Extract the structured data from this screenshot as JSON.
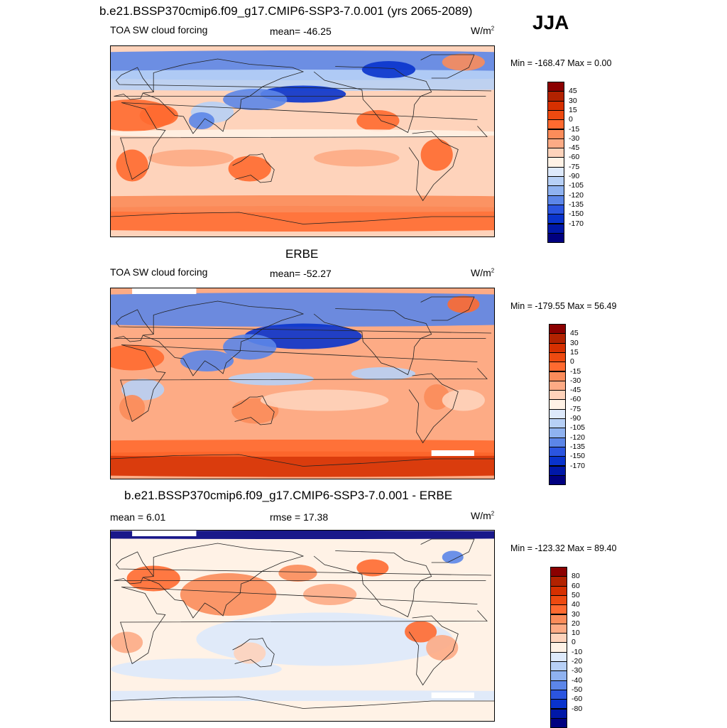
{
  "header": {
    "main_title": "b.e21.BSSP370cmip6.f09_g17.CMIP6-SSP3-7.0.001 (yrs 2065-2089)",
    "season": "JJA"
  },
  "panels": [
    {
      "id": "model",
      "title": "",
      "left_label": "TOA SW cloud forcing",
      "center_label": "mean= -46.25",
      "units": "W/m",
      "units_sup": "2",
      "minmax": "Min = -168.47 Max =   0.00",
      "colorbar": {
        "colors": [
          "#8b0000",
          "#b22200",
          "#d63000",
          "#ee4a10",
          "#ff6a30",
          "#fb8c5a",
          "#fdab85",
          "#fed3bb",
          "#fff2e6",
          "#dde9fb",
          "#b7d0f6",
          "#8fb2f0",
          "#5c86e8",
          "#2b55e0",
          "#0933cc",
          "#0018a8",
          "#000080"
        ],
        "labels": [
          "45",
          "30",
          "15",
          "0",
          "-15",
          "-30",
          "-45",
          "-60",
          "-75",
          "-90",
          "-105",
          "-120",
          "-135",
          "-150",
          "-170"
        ]
      }
    },
    {
      "id": "obs",
      "title": "ERBE",
      "left_label": "TOA SW cloud forcing",
      "center_label": "mean= -52.27",
      "units": "W/m",
      "units_sup": "2",
      "minmax": "Min = -179.55 Max =  56.49",
      "colorbar": {
        "colors": [
          "#8b0000",
          "#b22200",
          "#d63000",
          "#ee4a10",
          "#ff6a30",
          "#fb8c5a",
          "#fdab85",
          "#fed3bb",
          "#fff2e6",
          "#dde9fb",
          "#b7d0f6",
          "#8fb2f0",
          "#5c86e8",
          "#2b55e0",
          "#0933cc",
          "#0018a8",
          "#000080"
        ],
        "labels": [
          "45",
          "30",
          "15",
          "0",
          "-15",
          "-30",
          "-45",
          "-60",
          "-75",
          "-90",
          "-105",
          "-120",
          "-135",
          "-150",
          "-170"
        ]
      }
    },
    {
      "id": "diff",
      "title": "b.e21.BSSP370cmip6.f09_g17.CMIP6-SSP3-7.0.001 - ERBE",
      "left_label": "mean =   6.01",
      "center_label": "rmse =  17.38",
      "units": "W/m",
      "units_sup": "2",
      "minmax": "Min = -123.32 Max =  89.40",
      "colorbar": {
        "colors": [
          "#8b0000",
          "#b22200",
          "#d63000",
          "#ee4a10",
          "#ff6a30",
          "#fb8c5a",
          "#fdab85",
          "#fed3bb",
          "#fff2e6",
          "#dde9fb",
          "#b7d0f6",
          "#8fb2f0",
          "#5c86e8",
          "#2b55e0",
          "#0933cc",
          "#0018a8",
          "#000080"
        ],
        "labels": [
          "80",
          "60",
          "50",
          "40",
          "30",
          "20",
          "10",
          "0",
          "-10",
          "-20",
          "-30",
          "-40",
          "-50",
          "-60",
          "-80"
        ]
      }
    }
  ],
  "palette": {
    "deep_red": "#d63000",
    "red": "#ff6a30",
    "salmon": "#fb8c5a",
    "peach": "#fdab85",
    "light_peach": "#fed3bb",
    "cream": "#fff2e6",
    "light_blue": "#dde9fb",
    "sky": "#b7d0f6",
    "blue": "#5c86e8",
    "deep_blue": "#0933cc",
    "navy": "#000080"
  }
}
